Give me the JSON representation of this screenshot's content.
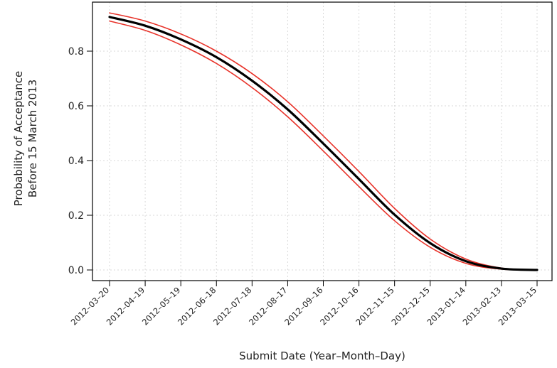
{
  "chart_data": {
    "type": "line",
    "title": "",
    "xlabel": "Submit Date (Year–Month–Day)",
    "ylabel_lines": [
      "Probability of Acceptance",
      "Before 15 March 2013"
    ],
    "x_ticks": [
      "2012–03–20",
      "2012–04–19",
      "2012–05–19",
      "2012–06–18",
      "2012–07–18",
      "2012–08–17",
      "2012–09–16",
      "2012–10–16",
      "2012–11–15",
      "2012–12–15",
      "2013–01–14",
      "2013–02–13",
      "2013–03–15"
    ],
    "y_ticks": [
      "0.0",
      "0.2",
      "0.4",
      "0.6",
      "0.8"
    ],
    "ylim": [
      0,
      1.0
    ],
    "grid": true,
    "series": [
      {
        "role": "estimate",
        "color": "#000000",
        "x": [
          "2012-03-20",
          "2012-04-19",
          "2012-05-19",
          "2012-06-18",
          "2012-07-18",
          "2012-08-17",
          "2012-09-16",
          "2012-10-16",
          "2012-11-15",
          "2012-12-15",
          "2013-01-14",
          "2013-02-13",
          "2013-03-15"
        ],
        "y": [
          0.925,
          0.893,
          0.843,
          0.778,
          0.692,
          0.587,
          0.462,
          0.332,
          0.202,
          0.098,
          0.032,
          0.005,
          0.0
        ]
      },
      {
        "role": "upper",
        "color": "#e8332a",
        "x": [
          "2012-03-20",
          "2012-04-19",
          "2012-05-19",
          "2012-06-18",
          "2012-07-18",
          "2012-08-17",
          "2012-09-16",
          "2012-10-16",
          "2012-11-15",
          "2012-12-15",
          "2013-01-14",
          "2013-02-13",
          "2013-03-15"
        ],
        "y": [
          0.94,
          0.91,
          0.863,
          0.8,
          0.718,
          0.615,
          0.49,
          0.36,
          0.225,
          0.113,
          0.04,
          0.007,
          0.0
        ]
      },
      {
        "role": "lower",
        "color": "#e8332a",
        "x": [
          "2012-03-20",
          "2012-04-19",
          "2012-05-19",
          "2012-06-18",
          "2012-07-18",
          "2012-08-17",
          "2012-09-16",
          "2012-10-16",
          "2012-11-15",
          "2012-12-15",
          "2013-01-14",
          "2013-02-13",
          "2013-03-15"
        ],
        "y": [
          0.91,
          0.876,
          0.823,
          0.755,
          0.667,
          0.56,
          0.435,
          0.305,
          0.18,
          0.083,
          0.024,
          0.003,
          0.0
        ]
      }
    ]
  }
}
